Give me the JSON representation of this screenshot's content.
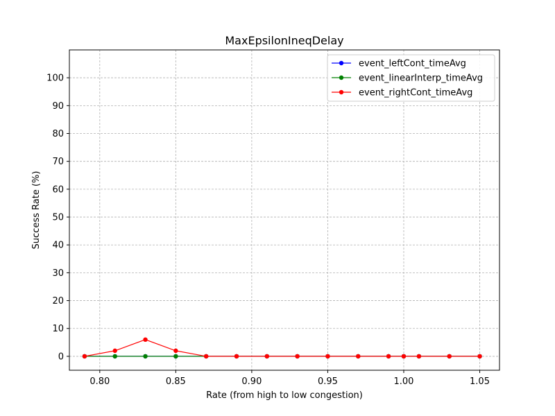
{
  "chart_data": {
    "type": "line",
    "title": "MaxEpsilonIneqDelay",
    "xlabel": "Rate (from high to low congestion)",
    "ylabel": "Success Rate (%)",
    "xlim": [
      0.78,
      1.063
    ],
    "ylim": [
      -5,
      110
    ],
    "xticks": [
      0.8,
      0.85,
      0.9,
      0.95,
      1.0,
      1.05
    ],
    "xtick_labels": [
      "0.80",
      "0.85",
      "0.90",
      "0.95",
      "1.00",
      "1.05"
    ],
    "yticks": [
      0,
      10,
      20,
      30,
      40,
      50,
      60,
      70,
      80,
      90,
      100
    ],
    "ytick_labels": [
      "0",
      "10",
      "20",
      "30",
      "40",
      "50",
      "60",
      "70",
      "80",
      "90",
      "100"
    ],
    "grid": true,
    "legend_position": "top-right",
    "x": [
      0.79,
      0.81,
      0.83,
      0.85,
      0.87,
      0.89,
      0.91,
      0.93,
      0.95,
      0.97,
      0.99,
      1.0,
      1.01,
      1.03,
      1.05
    ],
    "series": [
      {
        "name": "event_leftCont_timeAvg",
        "color": "#0000ff",
        "values": [
          0,
          0,
          0,
          0,
          0,
          0,
          0,
          0,
          0,
          0,
          0,
          0,
          0,
          0,
          0
        ]
      },
      {
        "name": "event_linearInterp_timeAvg",
        "color": "#008000",
        "values": [
          0,
          0,
          0,
          0,
          0,
          0,
          0,
          0,
          0,
          0,
          0,
          0,
          0,
          0,
          0
        ]
      },
      {
        "name": "event_rightCont_timeAvg",
        "color": "#ff0000",
        "values": [
          0,
          2,
          6,
          2,
          0,
          0,
          0,
          0,
          0,
          0,
          0,
          0,
          0,
          0,
          0
        ]
      }
    ]
  }
}
